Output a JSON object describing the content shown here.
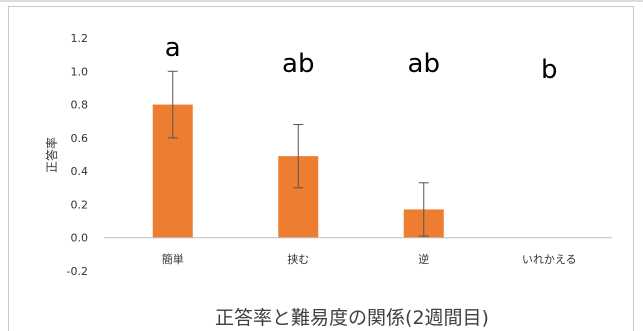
{
  "chart_data": {
    "type": "bar",
    "title": "正答率と難易度の関係(2週間目)",
    "xlabel": "",
    "ylabel": "正答率",
    "categories": [
      "簡単",
      "挟む",
      "逆",
      "いれかえる"
    ],
    "series": [
      {
        "values": [
          0.8,
          0.49,
          0.17,
          0.0
        ],
        "error": [
          0.2,
          0.19,
          0.16,
          0.0
        ],
        "color": "#ED7D31"
      }
    ],
    "significance_labels": [
      "a",
      "ab",
      "ab",
      "b"
    ],
    "ylim": [
      -0.2,
      1.2
    ],
    "yticks": [
      "1.2",
      "1.0",
      "0.8",
      "0.6",
      "0.4",
      "0.2",
      "0.0",
      "-0.2"
    ],
    "grid": false,
    "legend": "none"
  }
}
